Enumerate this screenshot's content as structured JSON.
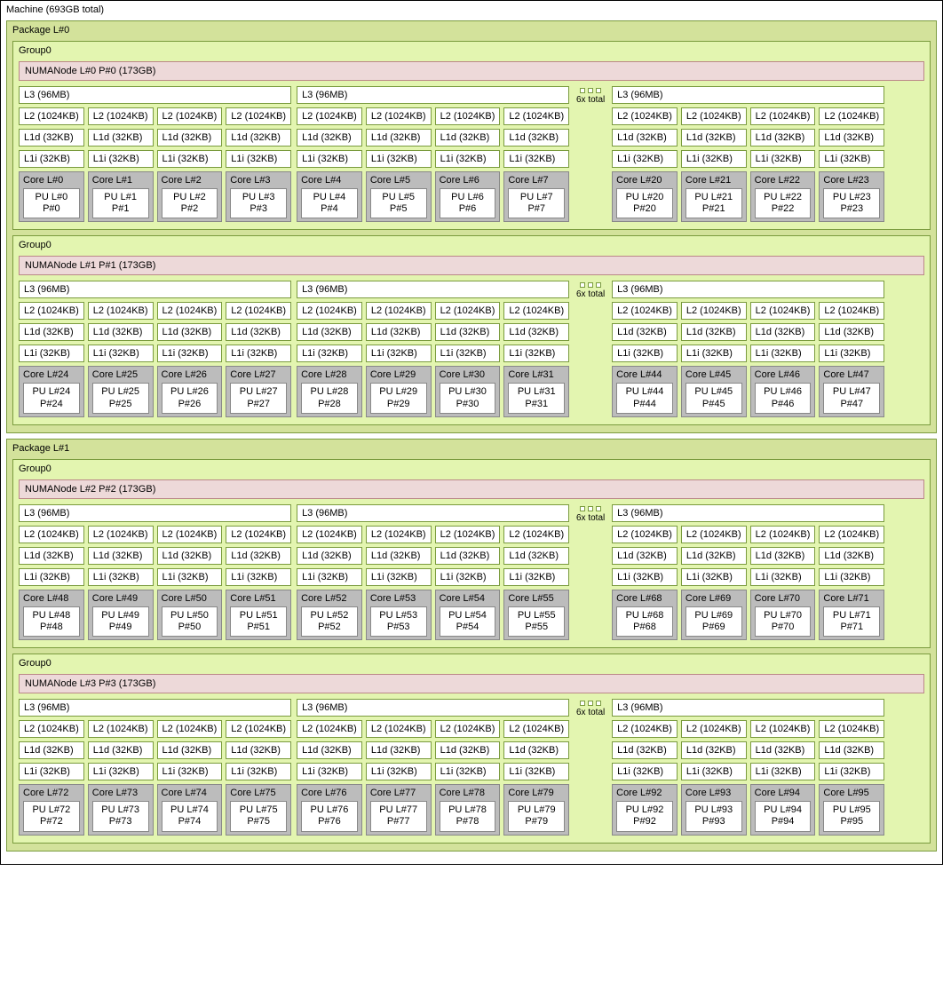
{
  "machine_label": "Machine (693GB total)",
  "gap_label": "6x total",
  "l3_label": "L3 (96MB)",
  "l2_label": "L2 (1024KB)",
  "l1d_label": "L1d (32KB)",
  "l1i_label": "L1i (32KB)",
  "packages": [
    {
      "label": "Package L#0",
      "groups": [
        {
          "label": "Group0",
          "numa": "NUMANode L#0 P#0 (173GB)",
          "blocks": [
            {
              "cores": [
                0,
                1,
                2,
                3
              ]
            },
            {
              "cores": [
                4,
                5,
                6,
                7
              ]
            },
            {
              "cores": [
                20,
                21,
                22,
                23
              ]
            }
          ]
        },
        {
          "label": "Group0",
          "numa": "NUMANode L#1 P#1 (173GB)",
          "blocks": [
            {
              "cores": [
                24,
                25,
                26,
                27
              ]
            },
            {
              "cores": [
                28,
                29,
                30,
                31
              ]
            },
            {
              "cores": [
                44,
                45,
                46,
                47
              ]
            }
          ]
        }
      ]
    },
    {
      "label": "Package L#1",
      "groups": [
        {
          "label": "Group0",
          "numa": "NUMANode L#2 P#2 (173GB)",
          "blocks": [
            {
              "cores": [
                48,
                49,
                50,
                51
              ]
            },
            {
              "cores": [
                52,
                53,
                54,
                55
              ]
            },
            {
              "cores": [
                68,
                69,
                70,
                71
              ]
            }
          ]
        },
        {
          "label": "Group0",
          "numa": "NUMANode L#3 P#3 (173GB)",
          "blocks": [
            {
              "cores": [
                72,
                73,
                74,
                75
              ]
            },
            {
              "cores": [
                76,
                77,
                78,
                79
              ]
            },
            {
              "cores": [
                92,
                93,
                94,
                95
              ]
            }
          ]
        }
      ]
    }
  ],
  "colors": {
    "package_bg": "#d3e29b",
    "group_bg": "#e3f5b0",
    "numa_bg": "#edd9d9",
    "core_bg": "#bcbcbc",
    "border_green": "#7a9b3e",
    "border_grey": "#888888"
  }
}
